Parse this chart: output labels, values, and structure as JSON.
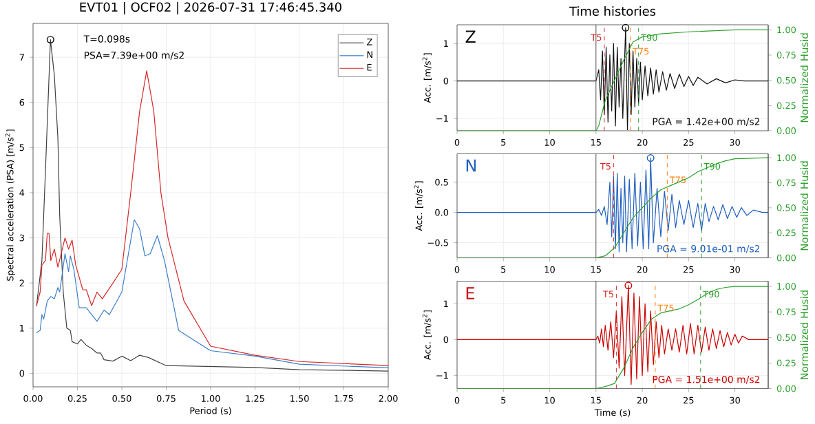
{
  "chart_data": [
    {
      "type": "line",
      "title": "EVT01 | OCF02 | 2026-07-31 17:46:45.340",
      "xlabel": "Period (s)",
      "ylabel": "Spectral acceleration (PSA) [m/s$^{2}$]",
      "xlim": [
        0,
        2
      ],
      "ylim": [
        -0.3,
        7.75
      ],
      "xticks": [
        {
          "value": 0,
          "label": "0.00"
        },
        {
          "value": 0.25,
          "label": "0.25"
        },
        {
          "value": 0.5,
          "label": "0.50"
        },
        {
          "value": 0.75,
          "label": "0.75"
        },
        {
          "value": 1,
          "label": "1.00"
        },
        {
          "value": 1.25,
          "label": "1.25"
        },
        {
          "value": 1.5,
          "label": "1.50"
        },
        {
          "value": 1.75,
          "label": "1.75"
        },
        {
          "value": 2,
          "label": "2.00"
        }
      ],
      "yticks": [
        0,
        1,
        2,
        3,
        4,
        5,
        6,
        7
      ],
      "grid": true,
      "legend": "top right",
      "annotations": [
        "T=0.098s",
        "PSA=7.39e+00 m/s2"
      ],
      "series": [
        {
          "name": "Z",
          "color": "#404040",
          "x": [
            0.02,
            0.05,
            0.07,
            0.098,
            0.12,
            0.14,
            0.15,
            0.17,
            0.19,
            0.21,
            0.22,
            0.25,
            0.27,
            0.3,
            0.33,
            0.36,
            0.38,
            0.4,
            0.45,
            0.5,
            0.55,
            0.6,
            0.65,
            0.75,
            1.0,
            1.25,
            1.5,
            2.0
          ],
          "values": [
            1.5,
            2.5,
            4.5,
            7.39,
            6.6,
            5.2,
            3.5,
            1.8,
            1.0,
            0.95,
            0.7,
            0.65,
            0.75,
            0.62,
            0.55,
            0.45,
            0.45,
            0.3,
            0.27,
            0.38,
            0.28,
            0.4,
            0.35,
            0.17,
            0.15,
            0.13,
            0.08,
            0.05
          ]
        },
        {
          "name": "N",
          "color": "#3a7dc9",
          "x": [
            0.02,
            0.04,
            0.05,
            0.06,
            0.08,
            0.1,
            0.12,
            0.14,
            0.15,
            0.18,
            0.2,
            0.21,
            0.23,
            0.26,
            0.3,
            0.36,
            0.4,
            0.43,
            0.5,
            0.57,
            0.6,
            0.63,
            0.66,
            0.7,
            0.74,
            0.82,
            0.9,
            1.0,
            1.25,
            1.5,
            2.0
          ],
          "values": [
            0.9,
            0.95,
            1.3,
            1.2,
            1.6,
            1.7,
            1.65,
            1.9,
            1.8,
            2.65,
            2.25,
            2.6,
            2.3,
            1.45,
            1.45,
            1.15,
            1.4,
            1.3,
            1.8,
            3.4,
            3.2,
            2.6,
            2.65,
            3.05,
            2.5,
            0.95,
            0.75,
            0.5,
            0.38,
            0.2,
            0.12
          ]
        },
        {
          "name": "E",
          "color": "#d62728",
          "x": [
            0.02,
            0.04,
            0.05,
            0.07,
            0.08,
            0.09,
            0.1,
            0.12,
            0.14,
            0.18,
            0.2,
            0.22,
            0.24,
            0.28,
            0.3,
            0.33,
            0.36,
            0.39,
            0.45,
            0.5,
            0.55,
            0.6,
            0.64,
            0.68,
            0.72,
            0.76,
            0.85,
            1.0,
            1.25,
            1.5,
            2.0
          ],
          "values": [
            1.5,
            1.8,
            2.4,
            2.5,
            3.1,
            3.1,
            2.5,
            2.75,
            2.35,
            3.0,
            2.75,
            2.95,
            2.4,
            1.85,
            1.85,
            1.5,
            1.8,
            1.65,
            2.0,
            2.3,
            4.0,
            5.8,
            6.7,
            5.8,
            4.0,
            3.0,
            1.6,
            0.6,
            0.4,
            0.26,
            0.17
          ]
        },
        {
          "type": "scatter",
          "marker": "circle",
          "color": "#000000",
          "x": [
            0.098
          ],
          "values": [
            7.39
          ]
        }
      ]
    },
    {
      "type": "line",
      "title": "Time histories",
      "ylabel": "Acc. [m/s$^{2}$]",
      "y2label": "Normalized Husid",
      "xlim": [
        0,
        33.6
      ],
      "ylim": [
        -1.33,
        1.5
      ],
      "y2lim": [
        0,
        1.05
      ],
      "xticks": [
        0,
        5,
        10,
        15,
        20,
        25,
        30
      ],
      "yticks": [
        {
          "value": -1,
          "label": "−1"
        },
        0,
        1
      ],
      "y2ticks": [
        {
          "value": 0,
          "label": "0.00"
        },
        {
          "value": 0.25,
          "label": "0.25"
        },
        {
          "value": 0.5,
          "label": "0.50"
        },
        {
          "value": 0.75,
          "label": "0.75"
        },
        {
          "value": 1,
          "label": "1.00"
        }
      ],
      "grid": true,
      "annotations": [
        "Z",
        "PGA = 1.42e+00 m/s2"
      ],
      "ref_lines": [
        {
          "axis": "x",
          "value": 15,
          "color": "#555555",
          "line_style": "solid"
        },
        {
          "axis": "x",
          "value": 15.9,
          "label": "T5",
          "color": "#d62728",
          "line_style": "dashed"
        },
        {
          "axis": "x",
          "value": 18.7,
          "label": "T75",
          "color": "#ff7f0e",
          "line_style": "dashed"
        },
        {
          "axis": "x",
          "value": 19.6,
          "label": "T90",
          "color": "#2ca02c",
          "line_style": "dashed"
        }
      ],
      "series": [
        {
          "color": "#111111",
          "x": [
            0,
            15,
            15.3,
            15.5,
            15.7,
            15.9,
            16.1,
            16.3,
            16.5,
            16.7,
            16.9,
            17.1,
            17.3,
            17.5,
            17.7,
            17.9,
            18.2,
            18.4,
            18.6,
            18.8,
            19.0,
            19.2,
            19.4,
            19.6,
            19.8,
            20.0,
            20.3,
            20.6,
            20.9,
            21.2,
            21.5,
            21.8,
            22.2,
            22.6,
            23,
            23.5,
            24,
            24.5,
            25,
            25.5,
            26,
            27,
            28,
            29,
            30,
            31,
            33.6
          ],
          "values": [
            0,
            0,
            0.3,
            -0.5,
            0.8,
            -0.9,
            0.9,
            -1.1,
            0.7,
            -0.8,
            1.0,
            -1.2,
            0.9,
            -0.7,
            0.6,
            -1.0,
            1.42,
            -1.3,
            1.0,
            -0.9,
            0.8,
            -0.7,
            0.6,
            -0.6,
            0.5,
            -0.5,
            0.4,
            -0.4,
            0.35,
            -0.35,
            0.3,
            -0.3,
            0.25,
            -0.25,
            0.2,
            -0.2,
            0.18,
            -0.15,
            0.12,
            -0.12,
            0.1,
            -0.08,
            0.06,
            -0.05,
            0.03,
            0,
            0
          ]
        },
        {
          "axis": "y2",
          "color": "#2ca02c",
          "x": [
            0,
            15,
            15.3,
            16,
            17,
            18,
            19,
            20,
            22,
            25,
            30,
            33.6
          ],
          "values": [
            0,
            0,
            0.05,
            0.3,
            0.5,
            0.7,
            0.88,
            0.93,
            0.96,
            0.98,
            1.0,
            1.0
          ]
        },
        {
          "type": "scatter",
          "marker": "circle",
          "color": "#111111",
          "x": [
            18.2
          ],
          "values": [
            1.42
          ]
        }
      ]
    },
    {
      "type": "line",
      "ylabel": "Acc. [m/s$^{2}$]",
      "y2label": "Normalized Husid",
      "xlim": [
        0,
        33.6
      ],
      "ylim": [
        -0.75,
        0.97
      ],
      "y2lim": [
        0,
        1.04
      ],
      "xticks": [
        0,
        5,
        10,
        15,
        20,
        25,
        30
      ],
      "yticks": [
        {
          "value": -0.5,
          "label": "−0.5"
        },
        {
          "value": 0,
          "label": "0.0"
        },
        {
          "value": 0.5,
          "label": "0.5"
        }
      ],
      "y2ticks": [
        {
          "value": 0,
          "label": "0.00"
        },
        {
          "value": 0.25,
          "label": "0.25"
        },
        {
          "value": 0.5,
          "label": "0.50"
        },
        {
          "value": 0.75,
          "label": "0.75"
        },
        {
          "value": 1,
          "label": "1.00"
        }
      ],
      "grid": true,
      "annotations": [
        "N",
        "PGA = 9.01e-01 m/s2"
      ],
      "ref_lines": [
        {
          "axis": "x",
          "value": 15,
          "color": "#555555",
          "line_style": "solid"
        },
        {
          "axis": "x",
          "value": 16.9,
          "label": "T5",
          "color": "#d62728",
          "line_style": "dashed"
        },
        {
          "axis": "x",
          "value": 22.7,
          "label": "T75",
          "color": "#ff7f0e",
          "line_style": "dashed"
        },
        {
          "axis": "x",
          "value": 26.4,
          "label": "T90",
          "color": "#2ca02c",
          "line_style": "dashed"
        }
      ],
      "series": [
        {
          "color": "#1f5fbf",
          "x": [
            0,
            15,
            15.3,
            15.6,
            15.9,
            16.2,
            16.5,
            16.7,
            16.9,
            17.1,
            17.3,
            17.5,
            17.7,
            17.9,
            18.1,
            18.3,
            18.6,
            18.9,
            19.2,
            19.5,
            19.8,
            20.1,
            20.4,
            20.7,
            20.9,
            21.2,
            21.6,
            22,
            22.4,
            22.8,
            23.2,
            23.6,
            24,
            24.5,
            25,
            25.5,
            26,
            26.4,
            26.8,
            27.2,
            27.7,
            28.2,
            28.7,
            29.2,
            29.7,
            30.2,
            30.7,
            31.3,
            32,
            33,
            33.6
          ],
          "values": [
            0,
            0,
            0.05,
            -0.05,
            0.1,
            -0.2,
            0.5,
            -0.4,
            0.6,
            -0.6,
            0.65,
            -0.65,
            0.4,
            -0.5,
            0.6,
            -0.65,
            0.55,
            -0.6,
            0.65,
            -0.55,
            0.5,
            -0.6,
            0.7,
            -0.6,
            0.9,
            -0.5,
            0.4,
            -0.4,
            0.35,
            -0.3,
            0.3,
            -0.25,
            0.2,
            -0.2,
            0.2,
            -0.25,
            0.15,
            -0.3,
            0.15,
            -0.15,
            0.1,
            -0.12,
            0.13,
            -0.1,
            0.1,
            -0.08,
            0.08,
            -0.05,
            0.04,
            0,
            0
          ]
        },
        {
          "axis": "y2",
          "color": "#2ca02c",
          "x": [
            0,
            15,
            16,
            17,
            18,
            19,
            20,
            21,
            22,
            23,
            24,
            25,
            26,
            27,
            28,
            29,
            30,
            33.6
          ],
          "values": [
            0,
            0,
            0.02,
            0.1,
            0.25,
            0.4,
            0.5,
            0.6,
            0.68,
            0.72,
            0.76,
            0.8,
            0.86,
            0.9,
            0.94,
            0.97,
            0.99,
            1.0
          ]
        },
        {
          "type": "scatter",
          "marker": "circle",
          "color": "#1f5fbf",
          "x": [
            20.9
          ],
          "values": [
            0.9
          ]
        }
      ]
    },
    {
      "type": "line",
      "xlabel": "Time (s)",
      "ylabel": "Acc. [m/s$^{2}$]",
      "y2label": "Normalized Husid",
      "xlim": [
        0,
        33.6
      ],
      "ylim": [
        -1.37,
        1.63
      ],
      "y2lim": [
        0,
        1.05
      ],
      "xticks": [
        0,
        5,
        10,
        15,
        20,
        25,
        30
      ],
      "yticks": [
        {
          "value": -1,
          "label": "−1"
        },
        0,
        1
      ],
      "y2ticks": [
        {
          "value": 0,
          "label": "0.00"
        },
        {
          "value": 0.25,
          "label": "0.25"
        },
        {
          "value": 0.5,
          "label": "0.50"
        },
        {
          "value": 0.75,
          "label": "0.75"
        },
        {
          "value": 1,
          "label": "1.00"
        }
      ],
      "grid": true,
      "annotations": [
        "E",
        "PGA = 1.51e+00 m/s2"
      ],
      "ref_lines": [
        {
          "axis": "x",
          "value": 15,
          "color": "#555555",
          "line_style": "solid"
        },
        {
          "axis": "x",
          "value": 17.2,
          "label": "T5",
          "color": "#d62728",
          "line_style": "dashed"
        },
        {
          "axis": "x",
          "value": 21.4,
          "label": "T75",
          "color": "#ff7f0e",
          "line_style": "dashed"
        },
        {
          "axis": "x",
          "value": 26.3,
          "label": "T90",
          "color": "#2ca02c",
          "line_style": "dashed"
        }
      ],
      "series": [
        {
          "color": "#cc0000",
          "x": [
            0,
            15,
            15.2,
            15.4,
            15.6,
            15.8,
            16.0,
            16.3,
            16.6,
            16.9,
            17.2,
            17.5,
            17.8,
            18.1,
            18.5,
            18.8,
            19.1,
            19.4,
            19.7,
            20.0,
            20.3,
            20.6,
            20.9,
            21.2,
            21.5,
            21.8,
            22.1,
            22.4,
            22.8,
            23.2,
            23.6,
            24,
            24.4,
            24.8,
            25.2,
            25.6,
            26,
            26.4,
            26.8,
            27.2,
            27.6,
            28,
            28.4,
            28.8,
            29.2,
            29.6,
            30,
            30.4,
            30.8,
            31.5,
            33.6
          ],
          "values": [
            0,
            0,
            0.1,
            -0.1,
            0.3,
            -0.2,
            0.4,
            -0.3,
            0.5,
            -0.5,
            0.8,
            -0.8,
            1.2,
            -1.0,
            1.51,
            -1.25,
            1.3,
            -1.1,
            1.2,
            -1.0,
            1.0,
            -0.9,
            0.8,
            -0.7,
            0.5,
            -0.5,
            0.4,
            -0.4,
            0.3,
            -0.3,
            0.3,
            -0.35,
            0.4,
            -0.4,
            0.45,
            -0.4,
            0.4,
            -0.35,
            0.35,
            -0.3,
            0.3,
            -0.25,
            0.25,
            -0.2,
            0.2,
            -0.15,
            0.15,
            -0.1,
            0.1,
            0,
            0
          ]
        },
        {
          "axis": "y2",
          "color": "#2ca02c",
          "x": [
            0,
            15,
            16,
            17,
            18,
            19,
            20,
            21,
            22,
            23,
            24,
            25,
            26,
            27,
            28,
            29,
            30,
            33.6
          ],
          "values": [
            0,
            0,
            0.02,
            0.05,
            0.2,
            0.4,
            0.55,
            0.68,
            0.74,
            0.76,
            0.78,
            0.82,
            0.87,
            0.93,
            0.97,
            0.99,
            1.0,
            1.0
          ]
        },
        {
          "type": "scatter",
          "marker": "circle",
          "color": "#cc0000",
          "x": [
            18.5
          ],
          "values": [
            1.51
          ]
        }
      ]
    }
  ]
}
